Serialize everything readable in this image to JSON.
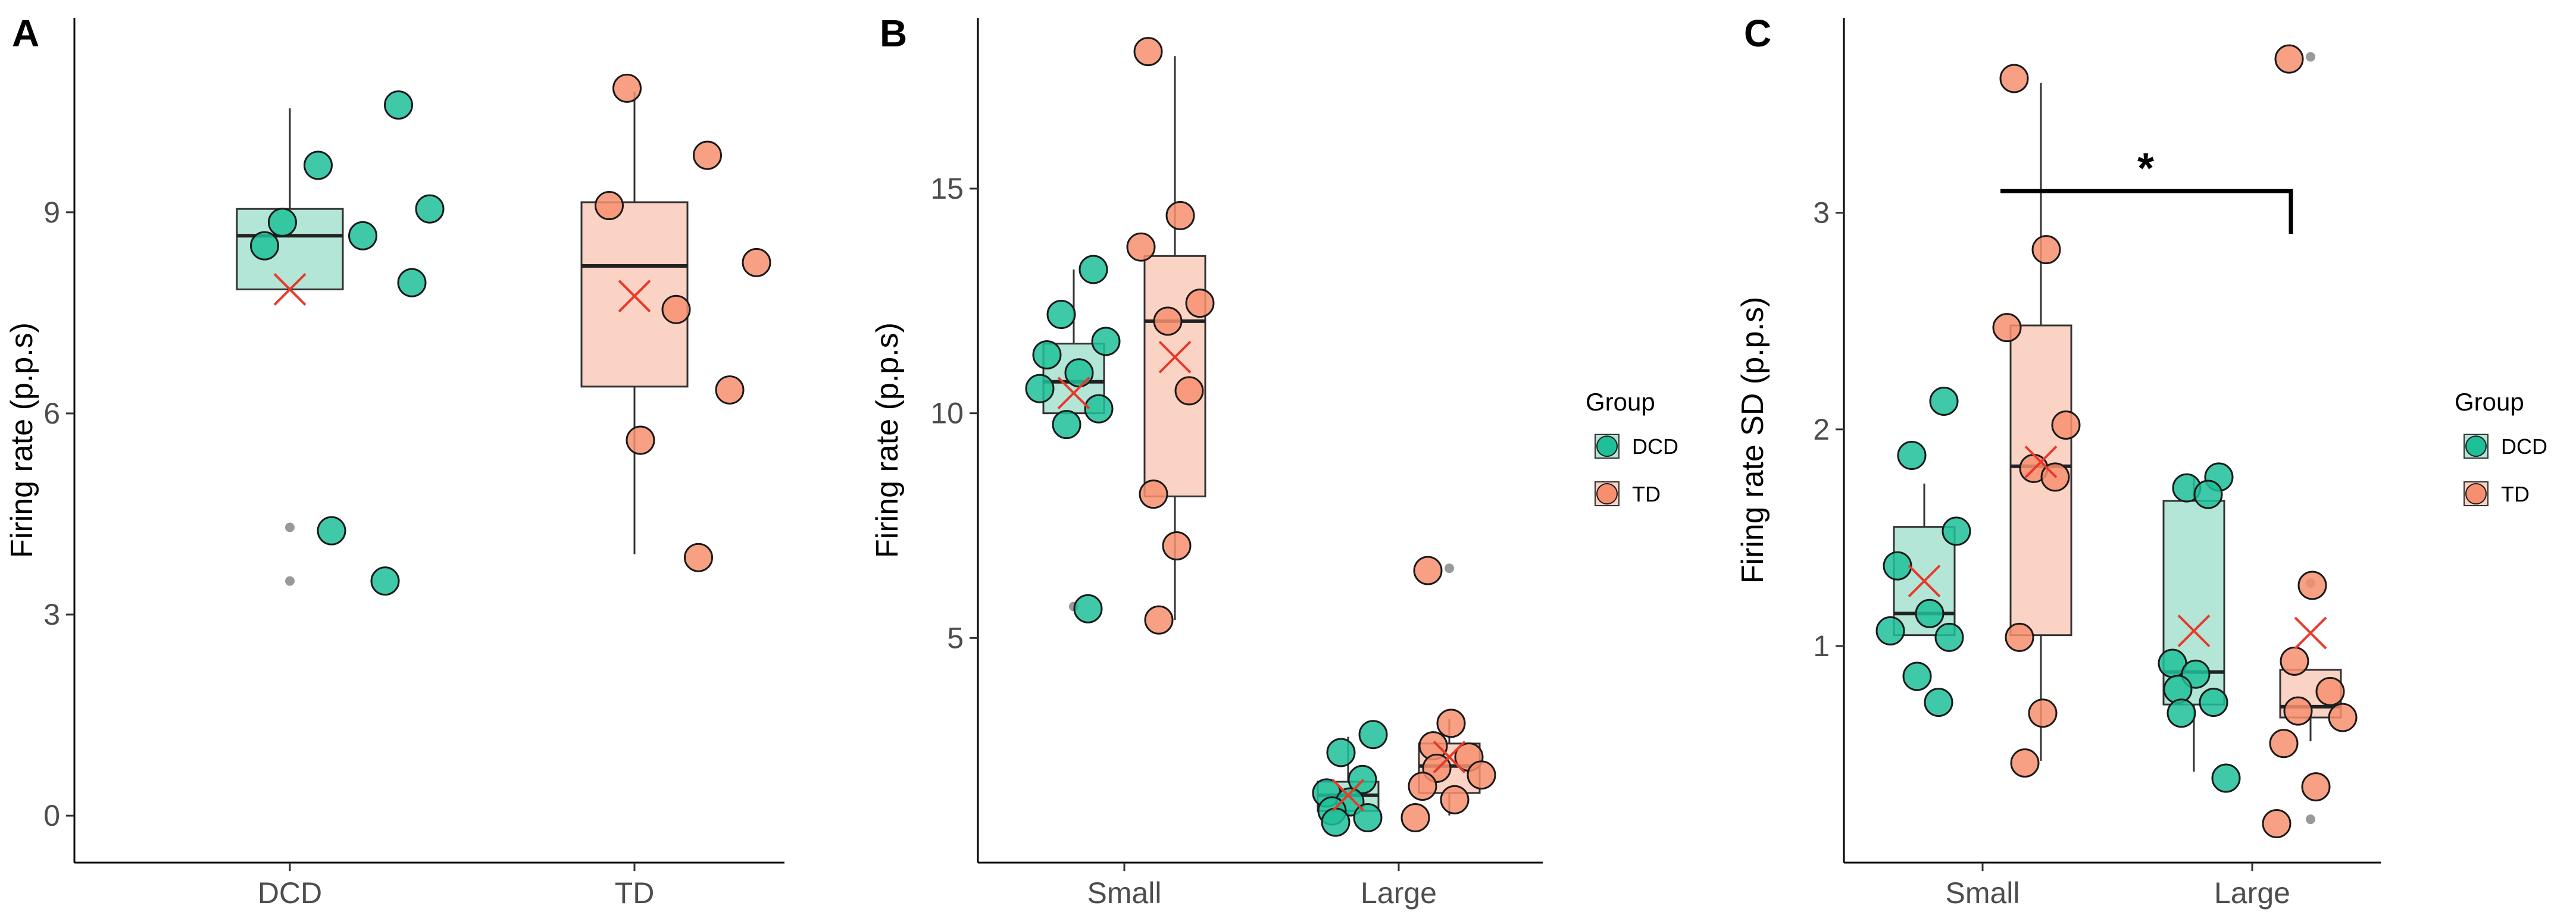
{
  "colors": {
    "DCD": "#1fbf99",
    "DCD_box": "#b3e6d6",
    "TD": "#f78f6e",
    "TD_box": "#fbd3c4",
    "mean_marker": "#e8392b",
    "outlier": "#999999"
  },
  "chart_data": [
    {
      "panel": "A",
      "type": "box",
      "ylabel": "Firing rate (p.p.s)",
      "ylim": [
        -0.7,
        11.9
      ],
      "yticks": [
        "0",
        "3",
        "6",
        "9"
      ],
      "ytick_values": [
        0,
        3,
        6,
        9
      ],
      "categories": [
        "DCD",
        "TD"
      ],
      "groups": [
        {
          "name": "DCD",
          "category": "DCD",
          "box": {
            "q1": 7.85,
            "median": 8.65,
            "q3": 9.05,
            "whisker_low": 7.85,
            "whisker_high": 10.55,
            "mean": 7.85
          },
          "outliers": [
            4.3,
            3.5
          ],
          "points": [
            10.6,
            9.7,
            9.05,
            8.85,
            8.65,
            8.5,
            7.95,
            4.25,
            3.5
          ]
        },
        {
          "name": "TD",
          "category": "TD",
          "box": {
            "q1": 6.4,
            "median": 8.2,
            "q3": 9.15,
            "whisker_low": 3.9,
            "whisker_high": 10.8,
            "mean": 7.75
          },
          "outliers": [],
          "points": [
            10.85,
            9.85,
            9.1,
            8.25,
            7.55,
            6.35,
            5.6,
            3.85
          ]
        }
      ]
    },
    {
      "panel": "B",
      "type": "box",
      "ylabel": "Firing rate (p.p.s)",
      "ylim": [
        0,
        18.8
      ],
      "yticks": [
        "5",
        "10",
        "15"
      ],
      "ytick_values": [
        5,
        10,
        15
      ],
      "categories": [
        "Small",
        "Large"
      ],
      "legend": {
        "title": "Group",
        "entries": [
          "DCD",
          "TD"
        ]
      },
      "groups": [
        {
          "name": "DCD",
          "category": "Small",
          "box": {
            "q1": 10.0,
            "median": 10.7,
            "q3": 11.55,
            "whisker_low": 10.0,
            "whisker_high": 13.2,
            "mean": 10.45
          },
          "outliers": [
            5.7
          ],
          "points": [
            13.2,
            12.2,
            11.6,
            11.3,
            10.9,
            10.55,
            10.1,
            9.75,
            5.65
          ]
        },
        {
          "name": "TD",
          "category": "Small",
          "box": {
            "q1": 8.15,
            "median": 12.05,
            "q3": 13.5,
            "whisker_low": 5.4,
            "whisker_high": 17.95,
            "mean": 11.25
          },
          "outliers": [],
          "points": [
            18.05,
            14.4,
            13.7,
            12.45,
            12.05,
            10.5,
            8.2,
            7.05,
            5.4
          ]
        },
        {
          "name": "DCD",
          "category": "Large",
          "box": {
            "q1": 1.15,
            "median": 1.5,
            "q3": 1.8,
            "whisker_low": 0.95,
            "whisker_high": 2.8,
            "mean": 1.5
          },
          "outliers": [],
          "points": [
            2.85,
            2.45,
            1.85,
            1.55,
            1.35,
            1.15,
            1.0,
            0.9
          ]
        },
        {
          "name": "TD",
          "category": "Large",
          "box": {
            "q1": 1.55,
            "median": 2.15,
            "q3": 2.65,
            "whisker_low": 1.05,
            "whisker_high": 3.2,
            "mean": 2.35
          },
          "outliers": [
            6.55
          ],
          "points": [
            6.5,
            3.1,
            2.6,
            2.35,
            2.1,
            1.95,
            1.7,
            1.4,
            1.0
          ]
        }
      ]
    },
    {
      "panel": "C",
      "type": "box",
      "ylabel": "Firing rate SD (p.p.s)",
      "ylim": [
        0.0,
        3.9
      ],
      "yticks": [
        "1",
        "2",
        "3"
      ],
      "ytick_values": [
        1,
        2,
        3
      ],
      "categories": [
        "Small",
        "Large"
      ],
      "legend": {
        "title": "Group",
        "entries": [
          "DCD",
          "TD"
        ]
      },
      "annotation": {
        "text": "*",
        "bracket_from": "Small",
        "bracket_to": "Large",
        "y": 3.1
      },
      "groups": [
        {
          "name": "DCD",
          "category": "Small",
          "box": {
            "q1": 1.05,
            "median": 1.15,
            "q3": 1.55,
            "whisker_low": 1.05,
            "whisker_high": 1.75,
            "mean": 1.3
          },
          "outliers": [],
          "points": [
            2.13,
            1.88,
            1.53,
            1.37,
            1.15,
            1.07,
            1.04,
            0.86,
            0.74
          ]
        },
        {
          "name": "TD",
          "category": "Small",
          "box": {
            "q1": 1.05,
            "median": 1.83,
            "q3": 2.48,
            "whisker_low": 0.47,
            "whisker_high": 3.6,
            "mean": 1.85
          },
          "outliers": [],
          "points": [
            3.62,
            2.83,
            2.47,
            2.02,
            1.82,
            1.78,
            1.04,
            0.69,
            0.46
          ]
        },
        {
          "name": "DCD",
          "category": "Large",
          "box": {
            "q1": 0.73,
            "median": 0.88,
            "q3": 1.67,
            "whisker_low": 0.42,
            "whisker_high": 1.78,
            "mean": 1.07
          },
          "outliers": [],
          "points": [
            1.78,
            1.73,
            1.7,
            0.92,
            0.87,
            0.8,
            0.74,
            0.69,
            0.39
          ]
        },
        {
          "name": "TD",
          "category": "Large",
          "box": {
            "q1": 0.67,
            "median": 0.72,
            "q3": 0.89,
            "whisker_low": 0.56,
            "whisker_high": 0.89,
            "mean": 1.06
          },
          "outliers": [
            3.72,
            1.29,
            0.2
          ],
          "points": [
            3.71,
            1.28,
            0.93,
            0.79,
            0.7,
            0.67,
            0.55,
            0.35,
            0.18
          ]
        }
      ]
    }
  ]
}
